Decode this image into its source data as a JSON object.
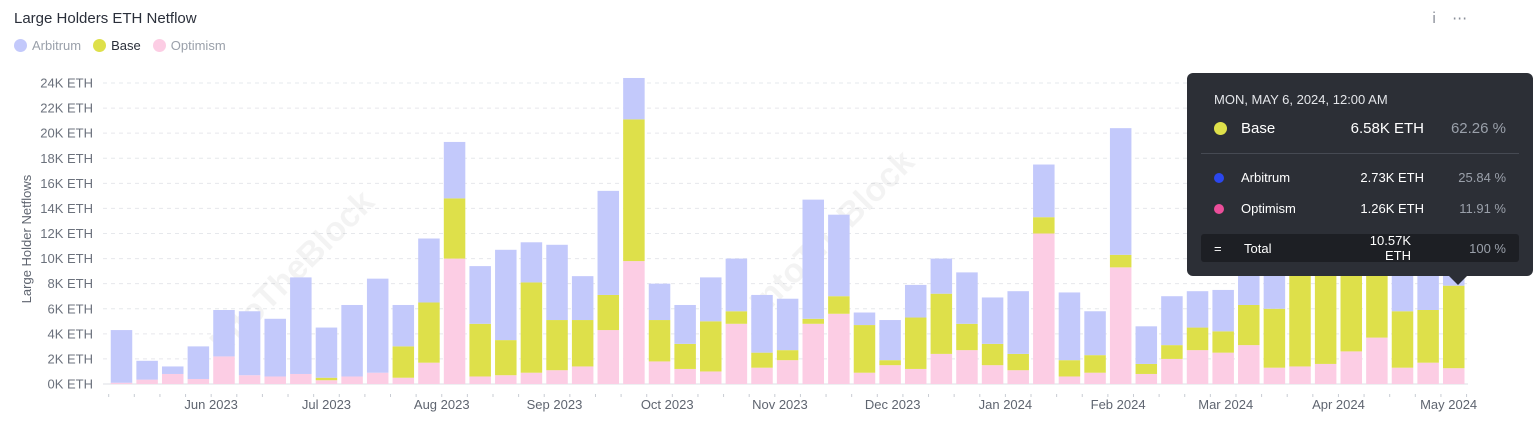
{
  "header": {
    "title": "Large Holders ETH Netflow",
    "info_icon": "info-icon",
    "more_icon": "more-icon"
  },
  "legend": [
    {
      "label": "Arbitrum",
      "color": "#c3c9fb",
      "active": false
    },
    {
      "label": "Base",
      "color": "#dee04a",
      "active": true
    },
    {
      "label": "Optimism",
      "color": "#fccde4",
      "active": false
    }
  ],
  "watermark": "IntoTheBlock",
  "tooltip": {
    "date": "MON, MAY 6, 2024, 12:00 AM",
    "main": {
      "name": "Base",
      "value": "6.58K ETH",
      "pct": "62.26 %",
      "color": "#dee04a"
    },
    "rows": [
      {
        "name": "Arbitrum",
        "value": "2.73K ETH",
        "pct": "25.84 %",
        "color": "#2b47ee"
      },
      {
        "name": "Optimism",
        "value": "1.26K ETH",
        "pct": "11.91 %",
        "color": "#ec4e9a"
      }
    ],
    "total": {
      "symbol": "=",
      "name": "Total",
      "value": "10.57K ETH",
      "pct": "100 %"
    }
  },
  "chart_data": {
    "type": "bar",
    "stacked": true,
    "title": "Large Holders ETH Netflow",
    "ylabel": "Large Holder Netflows",
    "ylim": [
      0,
      24000
    ],
    "yticks": [
      0,
      2000,
      4000,
      6000,
      8000,
      10000,
      12000,
      14000,
      16000,
      18000,
      20000,
      22000,
      24000
    ],
    "ytick_labels": [
      "0K ETH",
      "2K ETH",
      "4K ETH",
      "6K ETH",
      "8K ETH",
      "10K ETH",
      "12K ETH",
      "14K ETH",
      "16K ETH",
      "18K ETH",
      "20K ETH",
      "22K ETH",
      "24K ETH"
    ],
    "xtick_labels": [
      {
        "label": "Jun 2023",
        "at_bar": 3.5
      },
      {
        "label": "Jul 2023",
        "at_bar": 8
      },
      {
        "label": "Aug 2023",
        "at_bar": 12.5
      },
      {
        "label": "Sep 2023",
        "at_bar": 16.9
      },
      {
        "label": "Oct 2023",
        "at_bar": 21.3
      },
      {
        "label": "Nov 2023",
        "at_bar": 25.7
      },
      {
        "label": "Dec 2023",
        "at_bar": 30.1
      },
      {
        "label": "Jan 2024",
        "at_bar": 34.5
      },
      {
        "label": "Feb 2024",
        "at_bar": 38.9
      },
      {
        "label": "Mar 2024",
        "at_bar": 43.1
      },
      {
        "label": "Apr 2024",
        "at_bar": 47.5
      },
      {
        "label": "May 2024",
        "at_bar": 51.8
      }
    ],
    "grid": true,
    "legend_position": "top-left",
    "series": [
      {
        "name": "Optimism",
        "color": "#fccde4",
        "values": [
          100,
          350,
          800,
          400,
          2200,
          700,
          600,
          800,
          300,
          600,
          900,
          500,
          1700,
          10000,
          600,
          700,
          900,
          1100,
          1400,
          4300,
          9800,
          1800,
          1200,
          1000,
          4800,
          1300,
          1900,
          4800,
          5600,
          900,
          1500,
          1200,
          2400,
          2700,
          1500,
          1100,
          12000,
          600,
          900,
          9300,
          800,
          2000,
          2700,
          2500,
          3100,
          1300,
          1400,
          1600,
          2600,
          3700,
          1300,
          1700,
          1260
        ]
      },
      {
        "name": "Base",
        "color": "#dee04a",
        "values": [
          0,
          0,
          0,
          0,
          0,
          0,
          0,
          0,
          200,
          0,
          0,
          2500,
          4800,
          4800,
          4200,
          2800,
          7200,
          4000,
          3700,
          2800,
          11300,
          3300,
          2000,
          4000,
          1000,
          1200,
          800,
          400,
          1400,
          3800,
          400,
          4100,
          4800,
          2100,
          1700,
          1300,
          1300,
          1300,
          1400,
          1000,
          800,
          1100,
          1800,
          1700,
          3200,
          4700,
          8000,
          8300,
          8600,
          7000,
          4500,
          4200,
          6580
        ]
      },
      {
        "name": "Arbitrum",
        "color": "#c3c9fb",
        "values": [
          4200,
          1500,
          600,
          2600,
          3700,
          5100,
          4600,
          7700,
          4000,
          5700,
          7500,
          3300,
          5100,
          4500,
          4600,
          7200,
          3200,
          6000,
          3500,
          8300,
          3300,
          2900,
          3100,
          3500,
          4200,
          4600,
          4100,
          9500,
          6500,
          1000,
          3200,
          2600,
          2800,
          4100,
          3700,
          5000,
          4200,
          5400,
          3500,
          10100,
          3000,
          3900,
          2900,
          3300,
          4400,
          3000,
          2800,
          3300,
          3400,
          3900,
          3800,
          3900,
          2730
        ]
      }
    ]
  }
}
